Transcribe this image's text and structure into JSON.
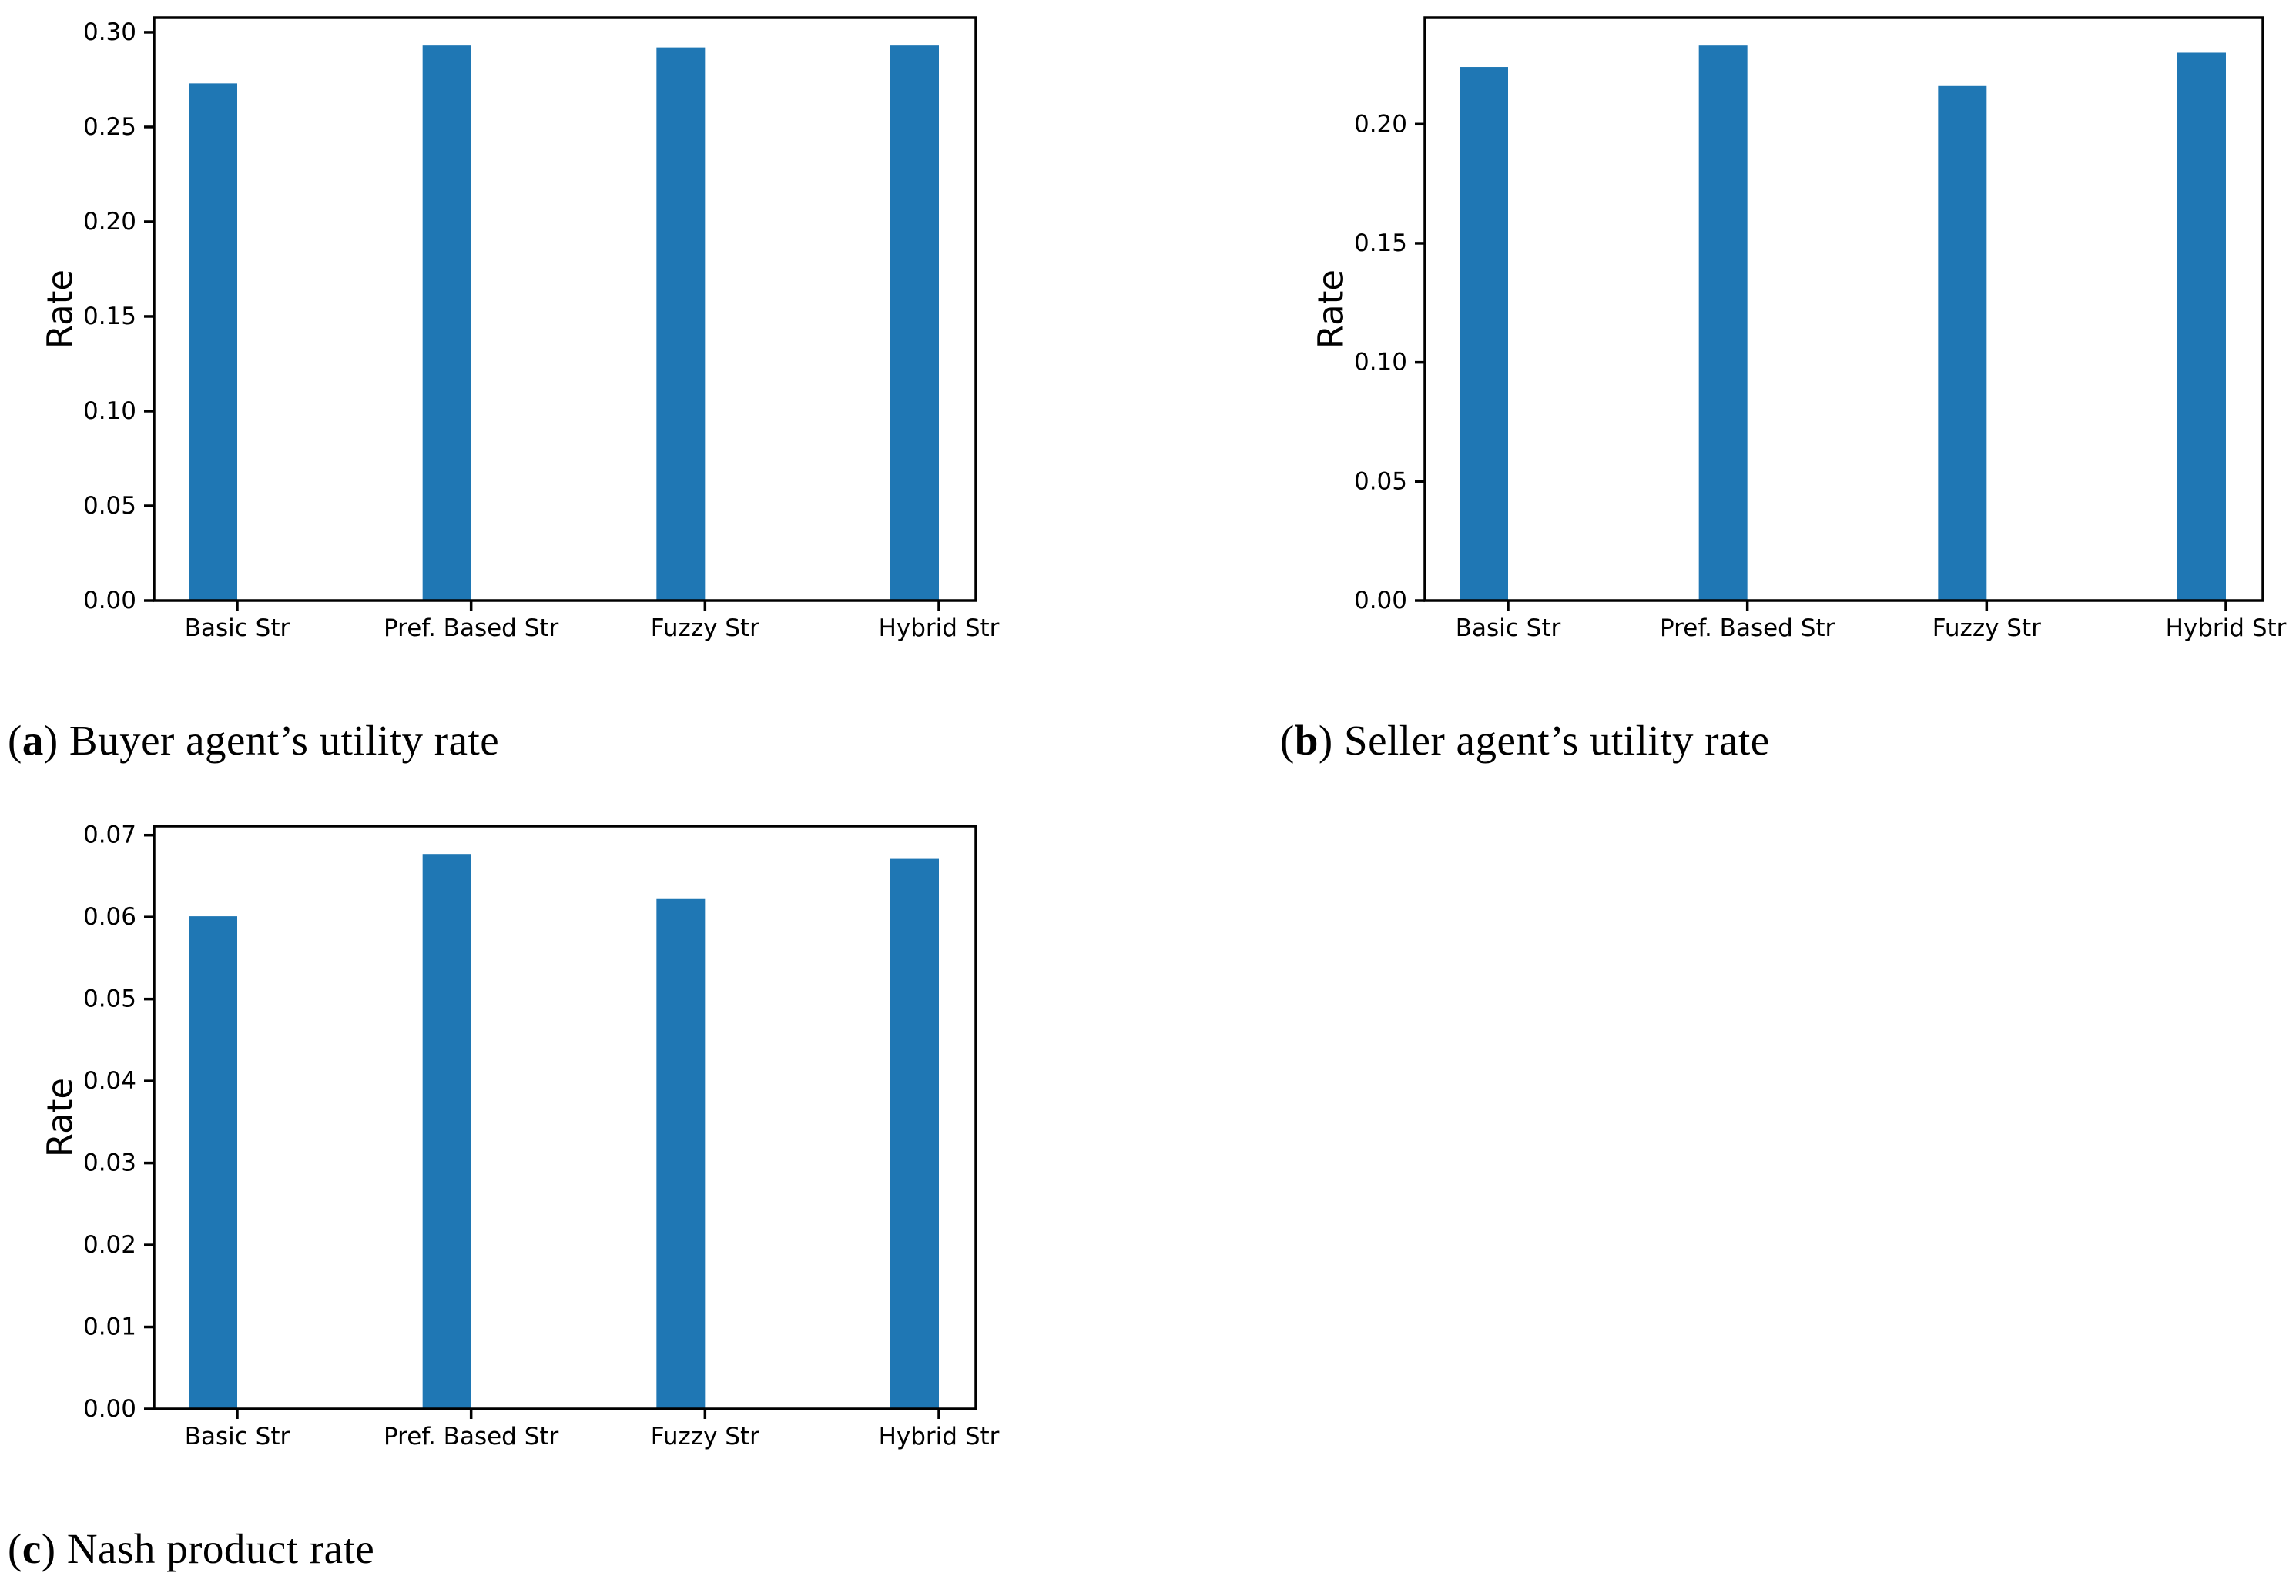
{
  "figure": {
    "captions": {
      "a": {
        "open": "(",
        "letter": "a",
        "close": ")",
        "text": " Buyer agent’s utility rate"
      },
      "b": {
        "open": "(",
        "letter": "b",
        "close": ")",
        "text": " Seller agent’s utility rate"
      },
      "c": {
        "open": "(",
        "letter": "c",
        "close": ")",
        "text": " Nash product rate"
      }
    }
  },
  "colors": {
    "bar": "#1f77b4",
    "axis": "#000000",
    "background": "#ffffff"
  },
  "chart_data": [
    {
      "id": "a",
      "type": "bar",
      "title": "",
      "caption": "(a) Buyer agent’s utility rate",
      "categories": [
        "Basic Str",
        "Pref. Based Str",
        "Fuzzy Str",
        "Hybrid Str"
      ],
      "values": [
        0.273,
        0.293,
        0.292,
        0.293
      ],
      "xlabel": "",
      "ylabel": "Rate",
      "ylim": [
        0,
        0.3077
      ],
      "ytick_labels": [
        "0.00",
        "0.05",
        "0.10",
        "0.15",
        "0.20",
        "0.25",
        "0.30"
      ],
      "grid": false,
      "legend": null,
      "bar_color": "#1f77b4"
    },
    {
      "id": "b",
      "type": "bar",
      "title": "",
      "caption": "(b) Seller agent’s utility rate",
      "categories": [
        "Basic Str",
        "Pref. Based Str",
        "Fuzzy Str",
        "Hybrid Str"
      ],
      "values": [
        0.224,
        0.233,
        0.216,
        0.23
      ],
      "xlabel": "",
      "ylabel": "Rate",
      "ylim": [
        0,
        0.2447
      ],
      "ytick_labels": [
        "0.00",
        "0.05",
        "0.10",
        "0.15",
        "0.20"
      ],
      "grid": false,
      "legend": null,
      "bar_color": "#1f77b4"
    },
    {
      "id": "c",
      "type": "bar",
      "title": "",
      "caption": "(c) Nash product rate",
      "categories": [
        "Basic Str",
        "Pref. Based Str",
        "Fuzzy Str",
        "Hybrid Str"
      ],
      "values": [
        0.0601,
        0.0677,
        0.0622,
        0.0671
      ],
      "xlabel": "",
      "ylabel": "Rate",
      "ylim": [
        0,
        0.0711
      ],
      "ytick_labels": [
        "0.00",
        "0.01",
        "0.02",
        "0.03",
        "0.04",
        "0.05",
        "0.06",
        "0.07"
      ],
      "grid": false,
      "legend": null,
      "bar_color": "#1f77b4"
    }
  ]
}
